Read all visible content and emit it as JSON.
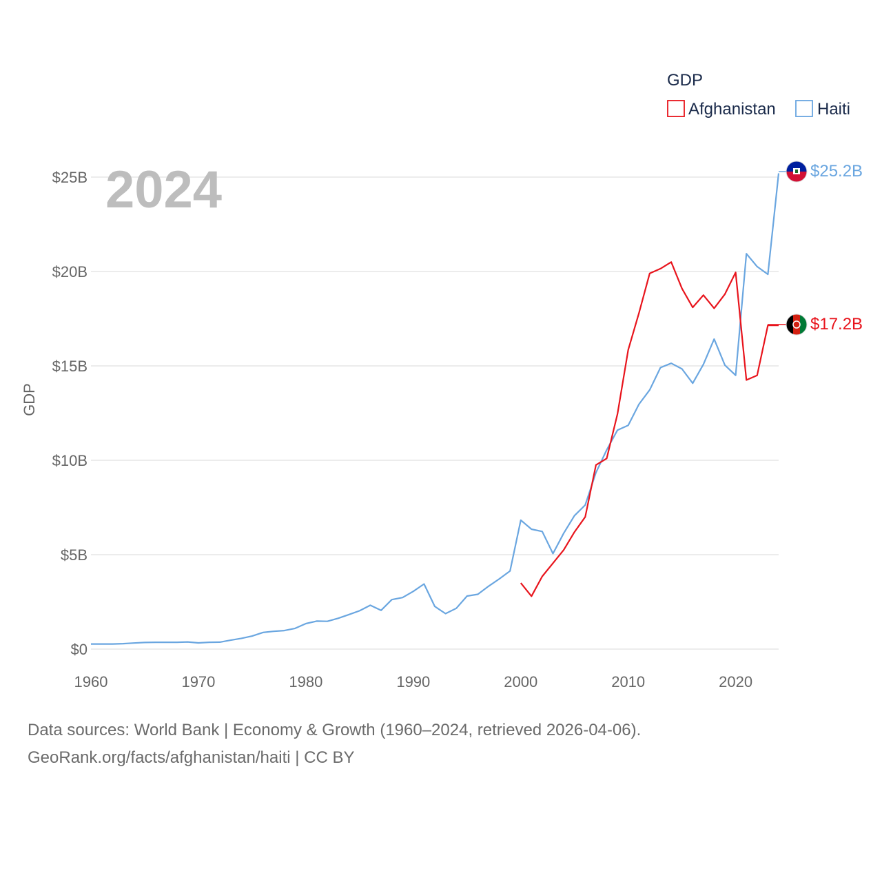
{
  "chart_data": {
    "type": "line",
    "year_label": "2024",
    "ylabel": "GDP",
    "legend_title": "GDP",
    "xlim": [
      1960,
      2024
    ],
    "ylim": [
      0,
      25
    ],
    "x_ticks": [
      1960,
      1970,
      1980,
      1990,
      2000,
      2010,
      2020
    ],
    "x_tick_labels": [
      "1960",
      "1970",
      "1980",
      "1990",
      "2000",
      "2010",
      "2020"
    ],
    "y_ticks": [
      0,
      5,
      10,
      15,
      20,
      25
    ],
    "y_tick_labels": [
      "$0",
      "$5B",
      "$10B",
      "$15B",
      "$20B",
      "$25B"
    ],
    "series": [
      {
        "name": "Afghanistan",
        "color": "#e8141c",
        "end_label": "$17.2B",
        "x": [
          2000,
          2001,
          2002,
          2003,
          2004,
          2005,
          2006,
          2007,
          2008,
          2009,
          2010,
          2011,
          2012,
          2013,
          2014,
          2015,
          2016,
          2017,
          2018,
          2019,
          2020,
          2021,
          2022,
          2023,
          2024
        ],
        "values": [
          3.5,
          2.8,
          3.85,
          4.55,
          5.25,
          6.2,
          7.0,
          9.75,
          10.1,
          12.45,
          15.85,
          17.8,
          19.9,
          20.15,
          20.5,
          19.1,
          18.1,
          18.75,
          18.05,
          18.8,
          19.95,
          14.25,
          14.5,
          17.15,
          17.15
        ]
      },
      {
        "name": "Haiti",
        "color": "#6aa6e0",
        "end_label": "$25.2B",
        "x": [
          1960,
          1961,
          1962,
          1963,
          1964,
          1965,
          1966,
          1967,
          1968,
          1969,
          1970,
          1971,
          1972,
          1973,
          1974,
          1975,
          1976,
          1977,
          1978,
          1979,
          1980,
          1981,
          1982,
          1983,
          1984,
          1985,
          1986,
          1987,
          1988,
          1989,
          1990,
          1991,
          1992,
          1993,
          1994,
          1995,
          1996,
          1997,
          1998,
          1999,
          2000,
          2001,
          2002,
          2003,
          2004,
          2005,
          2006,
          2007,
          2008,
          2009,
          2010,
          2011,
          2012,
          2013,
          2014,
          2015,
          2016,
          2017,
          2018,
          2019,
          2020,
          2021,
          2022,
          2023,
          2024
        ],
        "values": [
          0.27,
          0.27,
          0.27,
          0.29,
          0.32,
          0.35,
          0.36,
          0.36,
          0.36,
          0.38,
          0.33,
          0.36,
          0.37,
          0.47,
          0.57,
          0.69,
          0.88,
          0.94,
          0.98,
          1.1,
          1.35,
          1.48,
          1.47,
          1.63,
          1.83,
          2.03,
          2.32,
          2.05,
          2.62,
          2.73,
          3.06,
          3.45,
          2.26,
          1.88,
          2.16,
          2.81,
          2.9,
          3.33,
          3.72,
          4.14,
          6.83,
          6.35,
          6.23,
          5.06,
          6.14,
          7.07,
          7.63,
          9.35,
          10.55,
          11.6,
          11.85,
          12.97,
          13.73,
          14.91,
          15.14,
          14.84,
          14.08,
          15.08,
          16.42,
          15.04,
          14.5,
          20.94,
          20.26,
          19.85,
          25.2
        ]
      }
    ]
  },
  "footer": {
    "line1": "Data sources: World Bank | Economy & Growth (1960–2024, retrieved 2026-04-06).",
    "line2": "GeoRank.org/facts/afghanistan/haiti | CC BY"
  },
  "flags": {
    "afghanistan": "afghanistan-flag",
    "haiti": "haiti-flag"
  }
}
